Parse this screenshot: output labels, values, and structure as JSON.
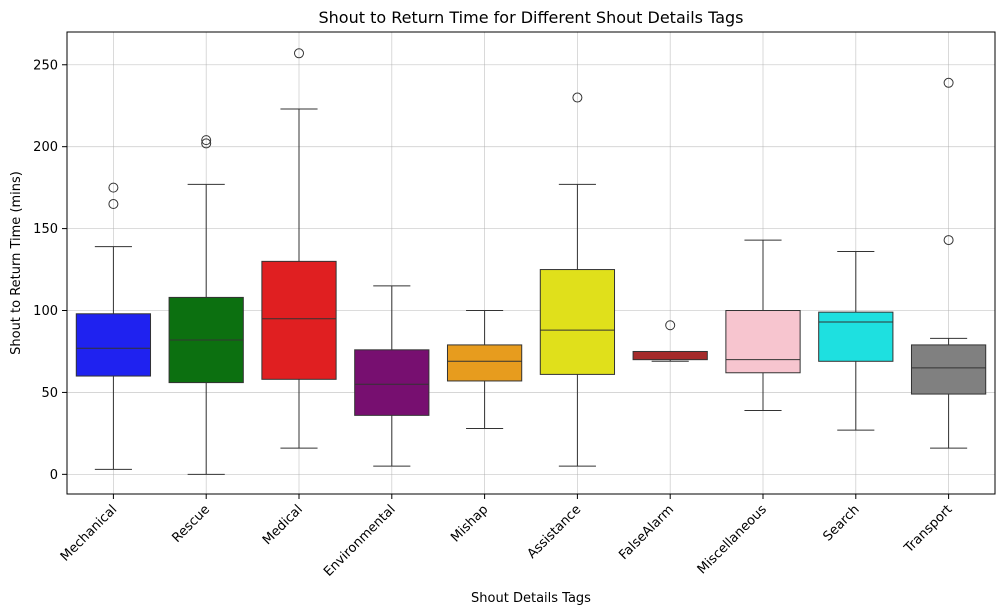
{
  "chart_data": {
    "type": "box",
    "title": "Shout to Return Time for Different Shout Details Tags",
    "xlabel": "Shout Details Tags",
    "ylabel": "Shout to Return Time (mins)",
    "ylim": [
      -12,
      270
    ],
    "yticks": [
      0,
      50,
      100,
      150,
      200,
      250
    ],
    "grid": true,
    "categories": [
      "Mechanical",
      "Rescue",
      "Medical",
      "Environmental",
      "Mishap",
      "Assistance",
      "FalseAlarm",
      "Miscellaneous",
      "Search",
      "Transport"
    ],
    "boxes": [
      {
        "category": "Mechanical",
        "color": "#1f22f0",
        "whisker_low": 3,
        "q1": 60,
        "median": 77,
        "q3": 98,
        "whisker_high": 139,
        "outliers": [
          165,
          175
        ]
      },
      {
        "category": "Rescue",
        "color": "#0c7010",
        "whisker_low": 0,
        "q1": 56,
        "median": 82,
        "q3": 108,
        "whisker_high": 177,
        "outliers": [
          202,
          204
        ]
      },
      {
        "category": "Medical",
        "color": "#e01f21",
        "whisker_low": 16,
        "q1": 58,
        "median": 95,
        "q3": 130,
        "whisker_high": 223,
        "outliers": [
          257
        ]
      },
      {
        "category": "Environmental",
        "color": "#770f70",
        "whisker_low": 5,
        "q1": 36,
        "median": 55,
        "q3": 76,
        "whisker_high": 115,
        "outliers": []
      },
      {
        "category": "Mishap",
        "color": "#e79c1e",
        "whisker_low": 28,
        "q1": 57,
        "median": 69,
        "q3": 79,
        "whisker_high": 100,
        "outliers": []
      },
      {
        "category": "Assistance",
        "color": "#e0e01b",
        "whisker_low": 5,
        "q1": 61,
        "median": 88,
        "q3": 125,
        "whisker_high": 177,
        "outliers": [
          230
        ]
      },
      {
        "category": "FalseAlarm",
        "color": "#a52a2a",
        "whisker_low": 69,
        "q1": 70,
        "median": 75,
        "q3": 75,
        "whisker_high": 75,
        "outliers": [
          91
        ]
      },
      {
        "category": "Miscellaneous",
        "color": "#f7c5cf",
        "whisker_low": 39,
        "q1": 62,
        "median": 70,
        "q3": 100,
        "whisker_high": 143,
        "outliers": []
      },
      {
        "category": "Search",
        "color": "#1ee0e0",
        "whisker_low": 27,
        "q1": 69,
        "median": 93,
        "q3": 99,
        "whisker_high": 136,
        "outliers": []
      },
      {
        "category": "Transport",
        "color": "#808080",
        "whisker_low": 16,
        "q1": 49,
        "median": 65,
        "q3": 79,
        "whisker_high": 83,
        "outliers": [
          143,
          239
        ]
      }
    ]
  }
}
